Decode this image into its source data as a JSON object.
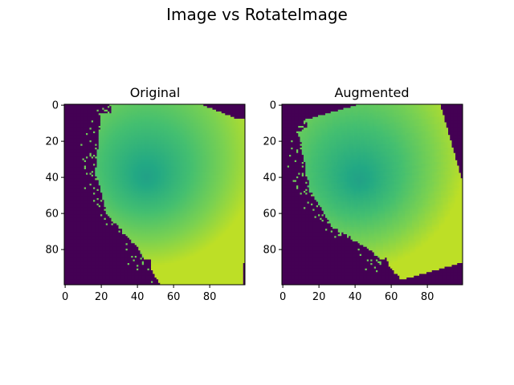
{
  "figure": {
    "suptitle": "Image vs RotateImage"
  },
  "colors": {
    "background": "#ffffff",
    "colormap": "viridis",
    "outside_value_color": "#440154",
    "high_value_color": "#c8e020"
  },
  "chart_data": [
    {
      "type": "heatmap",
      "title": "Original",
      "colormap": "viridis",
      "shape": [
        100,
        100
      ],
      "xlim": [
        0,
        99
      ],
      "ylim": [
        99,
        0
      ],
      "y_axis_inverted": true,
      "xticks": [
        0,
        20,
        40,
        60,
        80
      ],
      "yticks": [
        0,
        20,
        40,
        60,
        80
      ],
      "grid": false
    },
    {
      "type": "heatmap",
      "title": "Augmented",
      "colormap": "viridis",
      "shape": [
        100,
        100
      ],
      "xlim": [
        0,
        99
      ],
      "ylim": [
        99,
        0
      ],
      "y_axis_inverted": true,
      "xticks": [
        0,
        20,
        40,
        60,
        80
      ],
      "yticks": [
        0,
        20,
        40,
        60,
        80
      ],
      "grid": false,
      "augmentation": "rotation"
    }
  ]
}
